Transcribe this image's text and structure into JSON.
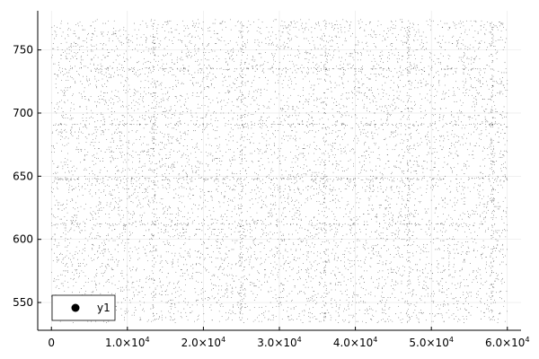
{
  "chart_data": {
    "type": "scatter",
    "title": "",
    "xlabel": "",
    "ylabel": "",
    "xlim": [
      -1800,
      61800
    ],
    "ylim": [
      528,
      781
    ],
    "grid": true,
    "legend": {
      "position": "bottom-left",
      "entries": [
        {
          "name": "y1",
          "color": "#000000"
        }
      ]
    },
    "x_ticks": [
      {
        "value": 0,
        "label": "0",
        "exp": ""
      },
      {
        "value": 10000,
        "label": "1.0×10",
        "exp": "4"
      },
      {
        "value": 20000,
        "label": "2.0×10",
        "exp": "4"
      },
      {
        "value": 30000,
        "label": "3.0×10",
        "exp": "4"
      },
      {
        "value": 40000,
        "label": "4.0×10",
        "exp": "4"
      },
      {
        "value": 50000,
        "label": "5.0×10",
        "exp": "4"
      },
      {
        "value": 60000,
        "label": "6.0×10",
        "exp": "4"
      }
    ],
    "y_ticks": [
      {
        "value": 550,
        "label": "550"
      },
      {
        "value": 600,
        "label": "600"
      },
      {
        "value": 650,
        "label": "650"
      },
      {
        "value": 700,
        "label": "700"
      },
      {
        "value": 750,
        "label": "750"
      }
    ],
    "series": [
      {
        "name": "y1",
        "color": "#000000",
        "marker_size": 0.8,
        "point_count": 60000,
        "x_range": [
          0,
          60000
        ],
        "y_range": [
          534,
          774
        ],
        "dense_y_bands": [
          691,
          735,
          648,
          612
        ],
        "dense_x_columns": [
          13500,
          25000,
          36000,
          47000,
          58000
        ]
      }
    ]
  }
}
